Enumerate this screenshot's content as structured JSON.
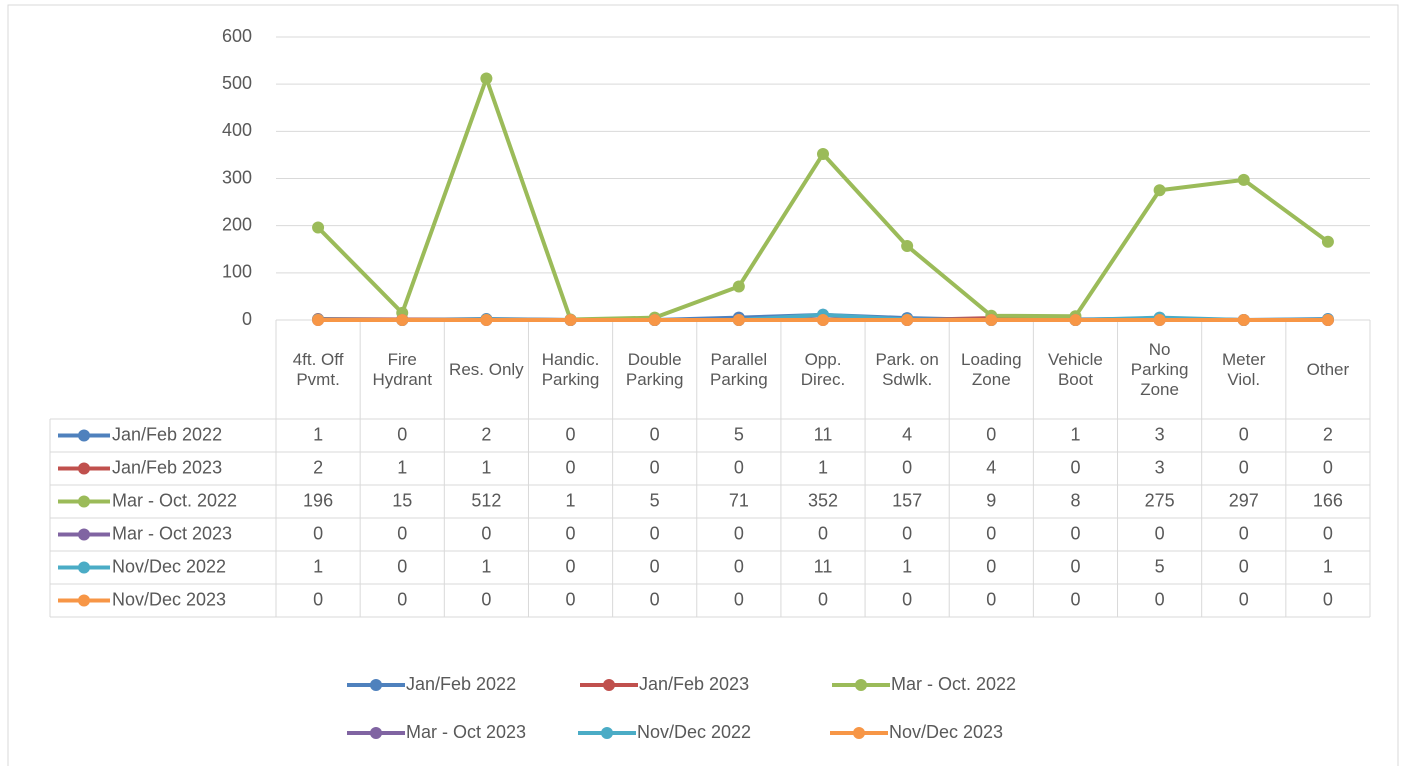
{
  "chart_data": {
    "type": "line",
    "categories": [
      "4ft. Off Pvmt.",
      "Fire Hydrant",
      "Res. Only",
      "Handic. Parking",
      "Double Parking",
      "Parallel Parking",
      "Opp. Direc.",
      "Park. on Sdwlk.",
      "Loading Zone",
      "Vehicle Boot",
      "No Parking Zone",
      "Meter Viol.",
      "Other"
    ],
    "series": [
      {
        "name": "Jan/Feb 2022",
        "color": "#4f81bd",
        "values": [
          1,
          0,
          2,
          0,
          0,
          5,
          11,
          4,
          0,
          1,
          3,
          0,
          2
        ]
      },
      {
        "name": "Jan/Feb 2023",
        "color": "#c0504d",
        "values": [
          2,
          1,
          1,
          0,
          0,
          0,
          1,
          0,
          4,
          0,
          3,
          0,
          0
        ]
      },
      {
        "name": "Mar - Oct. 2022",
        "color": "#9bbb59",
        "values": [
          196,
          15,
          512,
          1,
          5,
          71,
          352,
          157,
          9,
          8,
          275,
          297,
          166
        ]
      },
      {
        "name": "Mar - Oct 2023",
        "color": "#8064a2",
        "values": [
          0,
          0,
          0,
          0,
          0,
          0,
          0,
          0,
          0,
          0,
          0,
          0,
          0
        ]
      },
      {
        "name": "Nov/Dec 2022",
        "color": "#4bacc6",
        "values": [
          1,
          0,
          1,
          0,
          0,
          0,
          11,
          1,
          0,
          0,
          5,
          0,
          1
        ]
      },
      {
        "name": "Nov/Dec 2023",
        "color": "#f79646",
        "values": [
          0,
          0,
          0,
          0,
          0,
          0,
          0,
          0,
          0,
          0,
          0,
          0,
          0
        ]
      }
    ],
    "ylim": [
      0,
      600
    ],
    "yticks": [
      0,
      100,
      200,
      300,
      400,
      500,
      600
    ],
    "grid": true,
    "legend": "bottom"
  }
}
